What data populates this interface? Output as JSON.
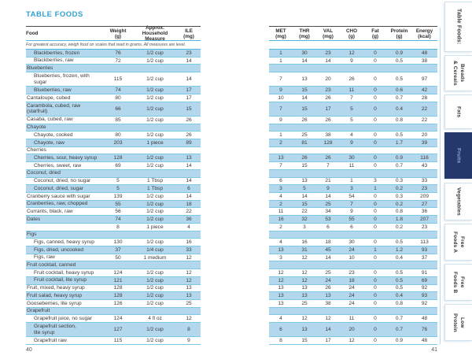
{
  "page_left": {
    "title": "TABLE FOODS",
    "note": "For greatest accuracy, weigh food on scales that read in grams. All measures are level.",
    "page_number": "40",
    "columns": [
      {
        "label": "Food",
        "unit": ""
      },
      {
        "label": "Weight",
        "unit": "(g)"
      },
      {
        "label": "Approx. Household",
        "unit": "Measure"
      },
      {
        "label": "ILE",
        "unit": "(mg)"
      }
    ]
  },
  "page_right": {
    "page_number": "41",
    "columns": [
      {
        "label": "MET",
        "unit": "(mg)"
      },
      {
        "label": "THR",
        "unit": "(mg)"
      },
      {
        "label": "VAL",
        "unit": "(mg)"
      },
      {
        "label": "CHO",
        "unit": "(g)"
      },
      {
        "label": "Fat",
        "unit": "(g)"
      },
      {
        "label": "Protein",
        "unit": "(g)"
      },
      {
        "label": "Energy",
        "unit": "(kcal)"
      }
    ]
  },
  "rows": [
    {
      "food": "Blackberries, frozen",
      "indent": true,
      "weight": "76",
      "measure": "1/2 cup",
      "ile": "23",
      "met": "1",
      "thr": "30",
      "val": "23",
      "cho": "12",
      "fat": "0",
      "protein": "0.9",
      "energy": "48"
    },
    {
      "food": "Blackberries, raw",
      "indent": true,
      "weight": "72",
      "measure": "1/2 cup",
      "ile": "14",
      "met": "1",
      "thr": "14",
      "val": "14",
      "cho": "9",
      "fat": "0",
      "protein": "0.5",
      "energy": "38"
    },
    {
      "food": "Blueberries",
      "cat": true
    },
    {
      "food": "Blueberries, frozen, with",
      "food2": "sugar",
      "indent": true,
      "tall": true,
      "weight": "115",
      "measure": "1/2 cup",
      "ile": "14",
      "met": "7",
      "thr": "13",
      "val": "20",
      "cho": "26",
      "fat": "0",
      "protein": "0.5",
      "energy": "97"
    },
    {
      "food": "Blueberries, raw",
      "indent": true,
      "weight": "74",
      "measure": "1/2 cup",
      "ile": "17",
      "met": "9",
      "thr": "15",
      "val": "23",
      "cho": "11",
      "fat": "0",
      "protein": "0.6",
      "energy": "42"
    },
    {
      "food": "Cantaloupe, cubed",
      "weight": "80",
      "measure": "1/2 cup",
      "ile": "17",
      "met": "10",
      "thr": "14",
      "val": "26",
      "cho": "7",
      "fat": "0",
      "protein": "0.7",
      "energy": "28"
    },
    {
      "food": "Carambola, cubed, raw",
      "food2": "(starfruit)",
      "tall": true,
      "weight": "66",
      "measure": "1/2 cup",
      "ile": "15",
      "met": "7",
      "thr": "15",
      "val": "17",
      "cho": "5",
      "fat": "0",
      "protein": "0.4",
      "energy": "22"
    },
    {
      "food": "Casaba, cubed, raw",
      "weight": "85",
      "measure": "1/2 cup",
      "ile": "26",
      "met": "9",
      "thr": "26",
      "val": "26",
      "cho": "5",
      "fat": "0",
      "protein": "0.8",
      "energy": "22"
    },
    {
      "food": "Chayote",
      "cat": true
    },
    {
      "food": "Chayote, cooked",
      "indent": true,
      "weight": "80",
      "measure": "1/2 cup",
      "ile": "26",
      "met": "1",
      "thr": "25",
      "val": "38",
      "cho": "4",
      "fat": "0",
      "protein": "0.5",
      "energy": "20"
    },
    {
      "food": "Chayote, raw",
      "indent": true,
      "weight": "203",
      "measure": "1 piece",
      "ile": "89",
      "met": "2",
      "thr": "81",
      "val": "128",
      "cho": "9",
      "fat": "0",
      "protein": "1.7",
      "energy": "39"
    },
    {
      "food": "Cherries",
      "cat": true
    },
    {
      "food": "Cherries, sour, heavy syrup",
      "indent": true,
      "weight": "128",
      "measure": "1/2 cup",
      "ile": "13",
      "met": "13",
      "thr": "26",
      "val": "26",
      "cho": "30",
      "fat": "0",
      "protein": "0.9",
      "energy": "116"
    },
    {
      "food": "Cherries, sweet, raw",
      "indent": true,
      "weight": "69",
      "measure": "1/2 cup",
      "ile": "14",
      "met": "7",
      "thr": "15",
      "val": "7",
      "cho": "11",
      "fat": "0",
      "protein": "0.7",
      "energy": "43"
    },
    {
      "food": "Coconut, dried",
      "cat": true
    },
    {
      "food": "Coconut, dried, no sugar",
      "indent": true,
      "weight": "5",
      "measure": "1 Tbsp",
      "ile": "14",
      "met": "6",
      "thr": "13",
      "val": "21",
      "cho": "1",
      "fat": "3",
      "protein": "0.3",
      "energy": "33"
    },
    {
      "food": "Coconut, dried, sugar",
      "indent": true,
      "weight": "5",
      "measure": "1 Tbsp",
      "ile": "6",
      "met": "3",
      "thr": "5",
      "val": "9",
      "cho": "3",
      "fat": "1",
      "protein": "0.2",
      "energy": "23"
    },
    {
      "food": "Cranberry sauce with sugar",
      "weight": "139",
      "measure": "1/2 cup",
      "ile": "14",
      "met": "4",
      "thr": "14",
      "val": "14",
      "cho": "54",
      "fat": "0",
      "protein": "0.3",
      "energy": "209"
    },
    {
      "food": "Cranberries, raw, chopped",
      "weight": "55",
      "measure": "1/2 cup",
      "ile": "18",
      "met": "2",
      "thr": "15",
      "val": "25",
      "cho": "7",
      "fat": "0",
      "protein": "0.2",
      "energy": "27"
    },
    {
      "food": "Currants, black, raw",
      "weight": "56",
      "measure": "1/2 cup",
      "ile": "22",
      "met": "11",
      "thr": "22",
      "val": "34",
      "cho": "9",
      "fat": "0",
      "protein": "0.8",
      "energy": "36"
    },
    {
      "food": "Dates",
      "weight": "74",
      "measure": "1/2 cup",
      "ile": "36",
      "met": "16",
      "thr": "32",
      "val": "53",
      "cho": "55",
      "fat": "0",
      "protein": "1.8",
      "energy": "207"
    },
    {
      "food": "",
      "weight": "8",
      "measure": "1 piece",
      "ile": "4",
      "met": "2",
      "thr": "3",
      "val": "6",
      "cho": "6",
      "fat": "0",
      "protein": "0.2",
      "energy": "23"
    },
    {
      "food": "Figs",
      "cat": true
    },
    {
      "food": "Figs, canned, heavy syrup",
      "indent": true,
      "weight": "130",
      "measure": "1/2 cup",
      "ile": "16",
      "met": "4",
      "thr": "16",
      "val": "18",
      "cho": "30",
      "fat": "0",
      "protein": "0.5",
      "energy": "113"
    },
    {
      "food": "Figs, dried, uncooked",
      "indent": true,
      "weight": "37",
      "measure": "1/4 cup",
      "ile": "33",
      "met": "13",
      "thr": "31",
      "val": "45",
      "cho": "24",
      "fat": "1",
      "protein": "1.2",
      "energy": "93"
    },
    {
      "food": "Figs, raw",
      "indent": true,
      "weight": "50",
      "measure": "1 medium",
      "ile": "12",
      "met": "3",
      "thr": "12",
      "val": "14",
      "cho": "10",
      "fat": "0",
      "protein": "0.4",
      "energy": "37"
    },
    {
      "food": "Fruit cocktail, canned",
      "cat": true
    },
    {
      "food": "Fruit cocktail, heavy syrup",
      "indent": true,
      "weight": "124",
      "measure": "1/2 cup",
      "ile": "12",
      "met": "12",
      "thr": "12",
      "val": "25",
      "cho": "23",
      "fat": "0",
      "protein": "0.5",
      "energy": "91"
    },
    {
      "food": "Fruit cocktail, lite syrup",
      "indent": true,
      "weight": "121",
      "measure": "1/2 cup",
      "ile": "12",
      "met": "12",
      "thr": "12",
      "val": "24",
      "cho": "18",
      "fat": "0",
      "protein": "0.5",
      "energy": "69"
    },
    {
      "food": "Fruit, mixed, heavy syrup",
      "weight": "128",
      "measure": "1/2 cup",
      "ile": "13",
      "met": "13",
      "thr": "13",
      "val": "26",
      "cho": "24",
      "fat": "0",
      "protein": "0.5",
      "energy": "92"
    },
    {
      "food": "Fruit salad, heavy syrup",
      "weight": "128",
      "measure": "1/2 cup",
      "ile": "13",
      "met": "13",
      "thr": "13",
      "val": "13",
      "cho": "24",
      "fat": "0",
      "protein": "0.4",
      "energy": "93"
    },
    {
      "food": "Gooseberries, lite syrup",
      "weight": "126",
      "measure": "1/2 cup",
      "ile": "25",
      "met": "13",
      "thr": "25",
      "val": "38",
      "cho": "24",
      "fat": "0",
      "protein": "0.8",
      "energy": "92"
    },
    {
      "food": "Grapefruit",
      "cat": true
    },
    {
      "food": "Grapefruit juice, no sugar",
      "indent": true,
      "weight": "124",
      "measure": "4 fl oz",
      "ile": "12",
      "met": "4",
      "thr": "12",
      "val": "12",
      "cho": "11",
      "fat": "0",
      "protein": "0.7",
      "energy": "48"
    },
    {
      "food": "Grapefruit section,",
      "food2": "lite syrup",
      "indent": true,
      "tall": true,
      "weight": "127",
      "measure": "1/2 cup",
      "ile": "8",
      "met": "6",
      "thr": "13",
      "val": "14",
      "cho": "20",
      "fat": "0",
      "protein": "0.7",
      "energy": "76"
    },
    {
      "food": "Grapefruit raw",
      "indent": true,
      "weight": "115",
      "measure": "1/2 cup",
      "ile": "9",
      "met": "8",
      "thr": "15",
      "val": "17",
      "cho": "12",
      "fat": "0",
      "protein": "0.9",
      "energy": "48"
    }
  ],
  "sidebar": {
    "tabs": [
      {
        "label": "Table Foods:",
        "lines": [
          "Table Foods:"
        ],
        "active": false
      },
      {
        "label": "Breads & Cereals",
        "lines": [
          "Breads",
          "& Cereals"
        ],
        "active": false
      },
      {
        "label": "Fats",
        "lines": [
          "Fats"
        ],
        "active": false
      },
      {
        "label": "Fruits",
        "lines": [
          "Fruits"
        ],
        "active": true
      },
      {
        "label": "Vegetables",
        "lines": [
          "Vegetables"
        ],
        "active": false
      },
      {
        "label": "Free Foods A",
        "lines": [
          "Free",
          "Foods A"
        ],
        "active": false
      },
      {
        "label": "Free Foods B",
        "lines": [
          "Free",
          "Foods B"
        ],
        "active": false
      },
      {
        "label": "Low Protein",
        "lines": [
          "Low",
          "Protein"
        ],
        "active": false
      }
    ]
  },
  "colors": {
    "accent_teal": "#2ea3d0",
    "table_line_teal": "#4fb3dc",
    "table_line_light": "#7cc8e6",
    "row_highlight_blue": "#b3d7ed",
    "header_rule_dark": "#4a4a4a",
    "active_tab_navy": "#25386b",
    "active_tab_text": "#98acd2",
    "body_text": "#3a3a3a"
  }
}
